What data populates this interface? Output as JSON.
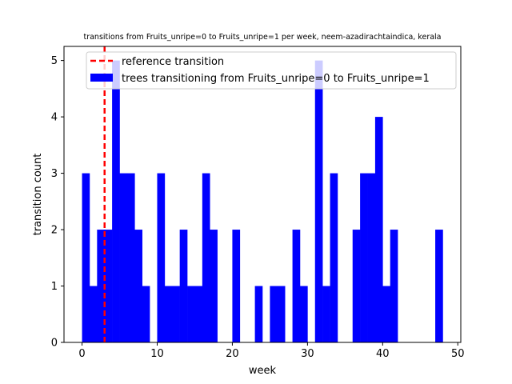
{
  "chart_data": {
    "type": "bar",
    "title": "transitions from Fruits_unripe=0 to Fruits_unripe=1 per week, neem-azadirachtaindica, kerala",
    "xlabel": "week",
    "ylabel": "transition count",
    "xlim": [
      -2.4,
      50.4
    ],
    "ylim": [
      0,
      5.25
    ],
    "x_ticks": [
      0,
      10,
      20,
      30,
      40,
      50
    ],
    "y_ticks": [
      0,
      1,
      2,
      3,
      4,
      5
    ],
    "bar_width": 1,
    "bar_color": "#0000ff",
    "reference_line": {
      "x": 3,
      "color": "#ff0000",
      "label": "reference transition"
    },
    "legend": {
      "placement": "top-right",
      "entries": [
        "reference transition",
        "trees transitioning from Fruits_unripe=0 to Fruits_unripe=1"
      ]
    },
    "series": [
      {
        "name": "trees transitioning from Fruits_unripe=0 to Fruits_unripe=1",
        "x": [
          0,
          1,
          2,
          3,
          4,
          5,
          6,
          7,
          8,
          9,
          10,
          11,
          12,
          13,
          14,
          15,
          16,
          17,
          18,
          19,
          20,
          21,
          22,
          23,
          24,
          25,
          26,
          27,
          28,
          29,
          30,
          31,
          32,
          33,
          34,
          35,
          36,
          37,
          38,
          39,
          40,
          41,
          42,
          43,
          44,
          45,
          46,
          47
        ],
        "values": [
          3,
          1,
          2,
          2,
          5,
          3,
          3,
          2,
          1,
          0,
          3,
          1,
          1,
          2,
          1,
          1,
          3,
          2,
          0,
          0,
          2,
          0,
          0,
          1,
          0,
          1,
          1,
          0,
          2,
          1,
          0,
          5,
          1,
          3,
          0,
          0,
          2,
          3,
          3,
          4,
          1,
          2,
          0,
          0,
          0,
          0,
          0,
          2
        ]
      }
    ]
  }
}
